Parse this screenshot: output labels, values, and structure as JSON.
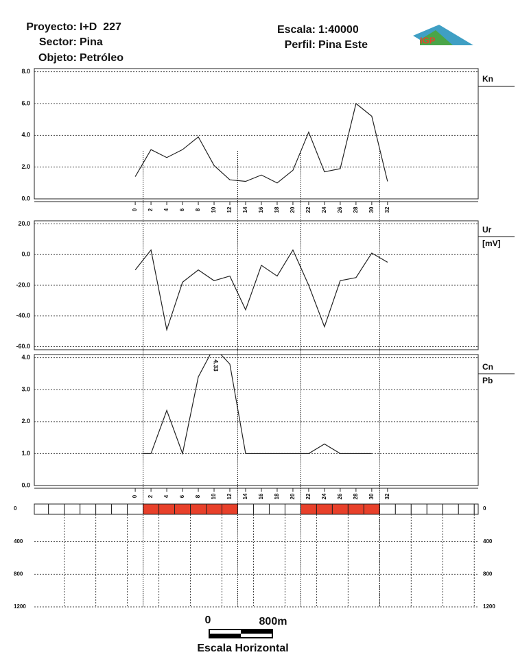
{
  "header": {
    "project_label": "Proyecto:",
    "project": "I+D  227",
    "sector_label": "Sector:",
    "sector": "Pina",
    "object_label": "Objeto:",
    "object": "Petróleo",
    "scale_label": "Escala:",
    "scale": "1:40000",
    "profile_label": "Perfil:",
    "profile": "Pina Este",
    "logo": "IGP"
  },
  "chart_data": [
    {
      "type": "line",
      "xlim": [
        -12.8,
        43.5
      ],
      "xticks": [
        0,
        2,
        4,
        6,
        8,
        10,
        12,
        14,
        16,
        18,
        20,
        22,
        24,
        26,
        28,
        30,
        32
      ],
      "ylim": [
        0,
        8.2
      ],
      "yticks": [
        {
          "value": 0,
          "label": "0.0"
        },
        {
          "value": 2,
          "label": "2.0"
        },
        {
          "value": 4,
          "label": "4.0"
        },
        {
          "value": 6,
          "label": "6.0"
        },
        {
          "value": 8,
          "label": "8.0"
        }
      ],
      "grid": true,
      "x": [
        0,
        2,
        4,
        6,
        8,
        10,
        12,
        14,
        16,
        18,
        20,
        22,
        24,
        26,
        28,
        30,
        32
      ],
      "series": [
        {
          "name": "Kn",
          "color": "#222222",
          "values": [
            1.4,
            3.1,
            2.6,
            3.1,
            3.9,
            2.1,
            1.2,
            1.1,
            1.5,
            1.0,
            1.8,
            4.2,
            1.7,
            1.9,
            6.0,
            5.2,
            1.1
          ]
        }
      ]
    },
    {
      "type": "line",
      "xlim": [
        -12.8,
        43.5
      ],
      "ylim": [
        -62,
        22
      ],
      "yticks": [
        {
          "value": -60,
          "label": "-60.0"
        },
        {
          "value": -40,
          "label": "-40.0"
        },
        {
          "value": -20,
          "label": "-20.0"
        },
        {
          "value": 0,
          "label": "0.0"
        },
        {
          "value": 20,
          "label": "20.0"
        }
      ],
      "grid": true,
      "x": [
        0,
        2,
        4,
        6,
        8,
        10,
        12,
        14,
        16,
        18,
        20,
        22,
        24,
        26,
        28,
        30,
        32
      ],
      "unit": "[mV]",
      "series": [
        {
          "name": "Ur",
          "color": "#222222",
          "values": [
            -10,
            3,
            -49,
            -18,
            -10,
            -17,
            -14,
            -36,
            -7,
            -14,
            3,
            -20,
            -47,
            -17,
            -15,
            1,
            -5
          ]
        }
      ]
    },
    {
      "type": "line",
      "xlim": [
        -12.8,
        43.5
      ],
      "xticks": [
        0,
        2,
        4,
        6,
        8,
        10,
        12,
        14,
        16,
        18,
        20,
        22,
        24,
        26,
        28,
        30,
        32
      ],
      "ylim": [
        0,
        4.1
      ],
      "yticks": [
        {
          "value": 0,
          "label": "0.0"
        },
        {
          "value": 1,
          "label": "1.0"
        },
        {
          "value": 2,
          "label": "2.0"
        },
        {
          "value": 3,
          "label": "3.0"
        },
        {
          "value": 4,
          "label": "4.0"
        }
      ],
      "grid": true,
      "x": [
        1,
        2,
        4,
        6,
        8,
        10,
        12,
        14,
        16,
        18,
        20,
        22,
        24,
        26,
        28,
        30
      ],
      "unit": "Pb",
      "annotations": [
        {
          "text": "4.33",
          "x": 10
        }
      ],
      "series": [
        {
          "name": "Cn",
          "color": "#222222",
          "values": [
            1,
            1,
            2.35,
            1,
            3.4,
            4.33,
            3.8,
            1,
            1,
            1,
            1,
            1,
            1.3,
            1,
            1,
            1
          ]
        }
      ]
    }
  ],
  "profile_strip": {
    "anomalies": [
      [
        1,
        13
      ],
      [
        21,
        31
      ]
    ],
    "anomaly_color": "#e8402a",
    "depth_ticks": [
      0,
      400,
      800,
      1200
    ]
  },
  "scale_bar": {
    "start": "0",
    "end": "800m",
    "title": "Escala Horizontal"
  }
}
